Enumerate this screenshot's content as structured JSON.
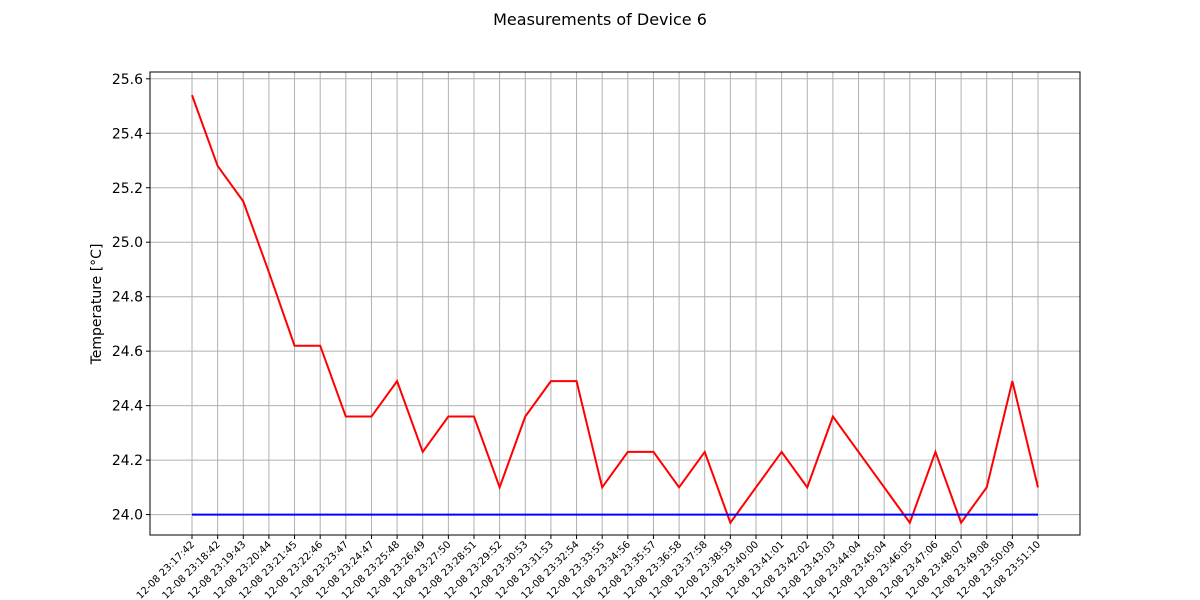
{
  "chart_data": {
    "type": "line",
    "title": "Measurements of Device 6",
    "xlabel": "",
    "ylabel": "Temperature [°C]",
    "ylim": [
      23.925,
      25.625
    ],
    "yticks": [
      24.0,
      24.2,
      24.4,
      24.6,
      24.8,
      25.0,
      25.2,
      25.4,
      25.6
    ],
    "ytick_labels": [
      "24.0",
      "24.2",
      "24.4",
      "24.6",
      "24.8",
      "25.0",
      "25.2",
      "25.4",
      "25.6"
    ],
    "grid": true,
    "categories": [
      "12-08 23:17:42",
      "12-08 23:18:42",
      "12-08 23:19:43",
      "12-08 23:20:44",
      "12-08 23:21:45",
      "12-08 23:22:46",
      "12-08 23:23:47",
      "12-08 23:24:47",
      "12-08 23:25:48",
      "12-08 23:26:49",
      "12-08 23:27:50",
      "12-08 23:28:51",
      "12-08 23:29:52",
      "12-08 23:30:53",
      "12-08 23:31:53",
      "12-08 23:32:54",
      "12-08 23:33:55",
      "12-08 23:34:56",
      "12-08 23:35:57",
      "12-08 23:36:58",
      "12-08 23:37:58",
      "12-08 23:38:59",
      "12-08 23:40:00",
      "12-08 23:41:01",
      "12-08 23:42:02",
      "12-08 23:43:03",
      "12-08 23:44:04",
      "12-08 23:45:04",
      "12-08 23:46:05",
      "12-08 23:47:06",
      "12-08 23:48:07",
      "12-08 23:49:08",
      "12-08 23:50:09",
      "12-08 23:51:10"
    ],
    "series": [
      {
        "color": "#ff0000",
        "values": [
          25.54,
          25.28,
          25.15,
          24.89,
          24.62,
          24.62,
          24.36,
          24.36,
          24.49,
          24.23,
          24.36,
          24.36,
          24.1,
          24.36,
          24.49,
          24.49,
          24.1,
          24.23,
          24.23,
          24.1,
          24.23,
          23.97,
          24.1,
          24.23,
          24.1,
          24.36,
          24.23,
          24.1,
          23.97,
          24.23,
          23.97,
          24.1,
          24.49,
          24.1
        ]
      },
      {
        "color": "#0000ff",
        "values": [
          24.0,
          24.0,
          24.0,
          24.0,
          24.0,
          24.0,
          24.0,
          24.0,
          24.0,
          24.0,
          24.0,
          24.0,
          24.0,
          24.0,
          24.0,
          24.0,
          24.0,
          24.0,
          24.0,
          24.0,
          24.0,
          24.0,
          24.0,
          24.0,
          24.0,
          24.0,
          24.0,
          24.0,
          24.0,
          24.0,
          24.0,
          24.0,
          24.0,
          24.0
        ]
      }
    ]
  }
}
